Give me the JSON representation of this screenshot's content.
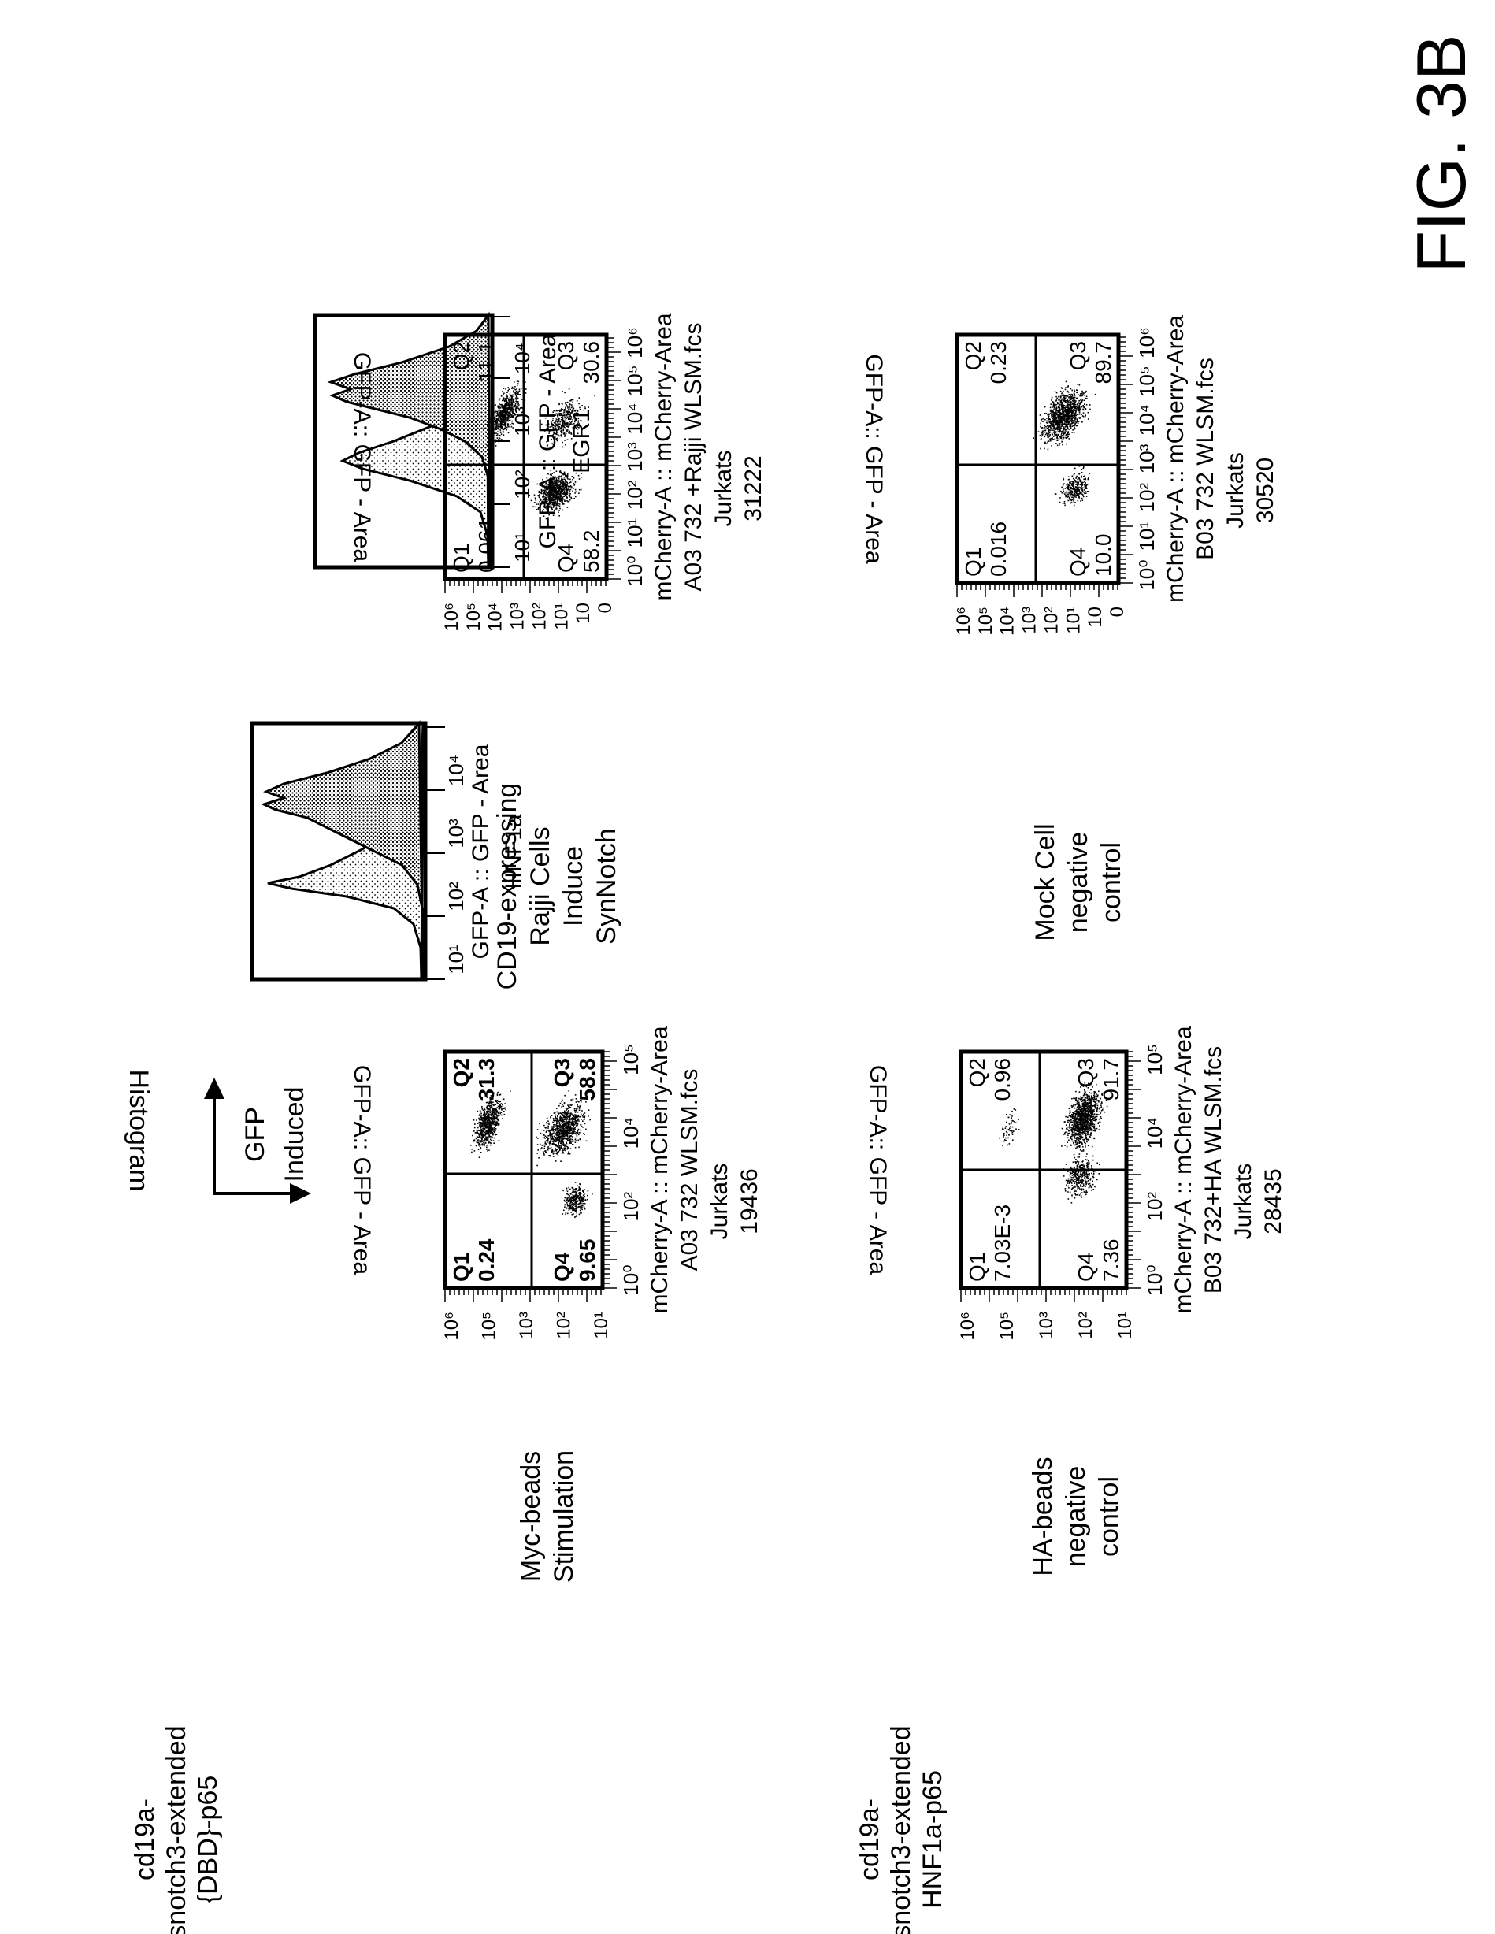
{
  "figure_label": "FIG. 3B",
  "constructs": [
    {
      "lines": [
        "cd19a-",
        "hsnotch3-extended",
        "{DBD}-p65"
      ]
    },
    {
      "lines": [
        "cd19a-",
        "hsnotch3-extended",
        "HNF1a-p65"
      ]
    }
  ],
  "legend": {
    "histogram_label": "Histogram",
    "gfp_label": [
      "GFP",
      "Induced"
    ]
  },
  "conditions": [
    {
      "lines": [
        "Myc-beads",
        "Stimulation"
      ]
    },
    {
      "lines": [
        "HA-beads",
        "negative",
        "control"
      ]
    },
    {
      "lines": [
        "CD19-expressing",
        "Rajji Cells",
        "Induce",
        "SynNotch"
      ]
    },
    {
      "lines": [
        "Mock Cell",
        "negative",
        "control"
      ]
    }
  ],
  "histograms": [
    {
      "id": "hnf1a",
      "title": "HNF1a",
      "xlabel": "GFP-A :: GFP - Area",
      "ticks": [
        "10¹",
        "10²",
        "10³",
        "10⁴"
      ]
    },
    {
      "id": "egr1",
      "title": "EGR1",
      "xlabel": "GFP-A :: GFP - Area",
      "ticks": [
        "10¹",
        "10²",
        "10³",
        "10⁴"
      ]
    }
  ],
  "plots": [
    {
      "id": "myc-beads",
      "ylabel": "GFP-A:: GFP - Area",
      "xlabel": "mCherry-A :: mCherry-Area",
      "sample": "A03 732 WLSM.fcs",
      "cells": "Jurkats",
      "count": "19436",
      "yticks": [
        "10⁶",
        "10⁵",
        "10³",
        "10²",
        "10¹"
      ],
      "yticks_extra": [
        "10³"
      ],
      "xticks": [
        "10⁰",
        "10²",
        "10⁴",
        "10⁵"
      ],
      "quadrants": {
        "q1": {
          "name": "Q1",
          "value": "0.24"
        },
        "q2": {
          "name": "Q2",
          "value": "31.3"
        },
        "q3": {
          "name": "Q3",
          "value": "58.8"
        },
        "q4": {
          "name": "Q4",
          "value": "9.65"
        }
      }
    },
    {
      "id": "ha-beads",
      "ylabel": "GFP-A:: GFP - Area",
      "xlabel": "mCherry-A :: mCherry-Area",
      "sample": "B03 732+HA WLSM.fcs",
      "cells": "Jurkats",
      "count": "28435",
      "yticks": [
        "10⁶",
        "10⁵",
        "10³",
        "10²",
        "10¹"
      ],
      "yticks_extra": [
        "10³"
      ],
      "xticks": [
        "10⁰",
        "10²",
        "10⁴",
        "10⁵"
      ],
      "quadrants": {
        "q1": {
          "name": "Q1",
          "value": "7.03E-3"
        },
        "q2": {
          "name": "Q2",
          "value": "0.96"
        },
        "q3": {
          "name": "Q3",
          "value": "91.7"
        },
        "q4": {
          "name": "Q4",
          "value": "7.36"
        }
      }
    },
    {
      "id": "raji",
      "ylabel": "GFP-A:: GFP - Area",
      "xlabel": "mCherry-A :: mCherry-Area",
      "sample": "A03 732 +Rajji WLSM.fcs",
      "cells": "Jurkats",
      "count": "31222",
      "yticks": [
        "10⁶",
        "10⁵",
        "10⁴",
        "10³",
        "10²",
        "10¹",
        "10",
        "0"
      ],
      "xticks": [
        "10⁰",
        "10¹",
        "10²",
        "10³",
        "10⁴",
        "10⁵",
        "10⁶"
      ],
      "quadrants": {
        "q1": {
          "name": "Q1",
          "value": "0.061"
        },
        "q2": {
          "name": "Q2",
          "value": "11.1"
        },
        "q3": {
          "name": "Q3",
          "value": "30.6"
        },
        "q4": {
          "name": "Q4",
          "value": "58.2"
        }
      }
    },
    {
      "id": "mock",
      "ylabel": "GFP-A:: GFP - Area",
      "xlabel": "mCherry-A :: mCherry-Area",
      "sample": "B03 732 WLSM.fcs",
      "cells": "Jurkats",
      "count": "30520",
      "yticks": [
        "10⁶",
        "10⁵",
        "10⁴",
        "10³",
        "10²",
        "10¹",
        "10",
        "0"
      ],
      "xticks": [
        "10⁰",
        "10¹",
        "10²",
        "10³",
        "10⁴",
        "10⁵",
        "10⁶"
      ],
      "quadrants": {
        "q1": {
          "name": "Q1",
          "value": "0.016"
        },
        "q2": {
          "name": "Q2",
          "value": "0.23"
        },
        "q3": {
          "name": "Q3",
          "value": "89.7"
        },
        "q4": {
          "name": "Q4",
          "value": "10.0"
        }
      }
    }
  ]
}
